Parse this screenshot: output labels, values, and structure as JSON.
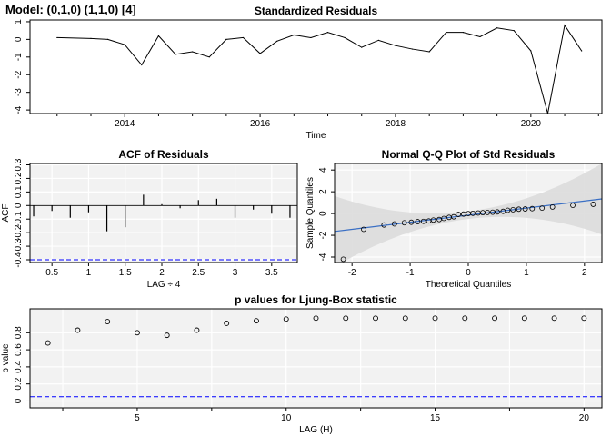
{
  "model_label": "Model: (0,1,0) (1,1,0) [4]",
  "chart_data": [
    {
      "id": "std-residuals",
      "type": "line",
      "title": "Standardized Residuals",
      "xlabel": "Time",
      "ylabel": "",
      "xlim": [
        2012.6,
        2021.05
      ],
      "ylim": [
        -4.2,
        1.1
      ],
      "x_ticks": [
        2014,
        2016,
        2018,
        2020
      ],
      "x_minor_ticks": [
        2013,
        2013.5,
        2014.5,
        2015,
        2015.5,
        2016.5,
        2017,
        2017.5,
        2018.5,
        2019,
        2019.5,
        2020.5,
        2021
      ],
      "y_ticks": [
        -4,
        -3,
        -2,
        -1,
        0,
        1
      ],
      "grid": false,
      "color": "#000000",
      "x": [
        2013.0,
        2013.5,
        2013.75,
        2014.0,
        2014.25,
        2014.5,
        2014.75,
        2015.0,
        2015.25,
        2015.5,
        2015.75,
        2016.0,
        2016.25,
        2016.5,
        2016.75,
        2017.0,
        2017.25,
        2017.5,
        2017.75,
        2018.0,
        2018.25,
        2018.5,
        2018.75,
        2019.0,
        2019.25,
        2019.5,
        2019.75,
        2020.0,
        2020.25,
        2020.5,
        2020.75
      ],
      "values": [
        0.1,
        0.05,
        0.0,
        -0.3,
        -1.45,
        0.2,
        -0.85,
        -0.7,
        -1.0,
        0.0,
        0.1,
        -0.8,
        -0.1,
        0.25,
        0.1,
        0.4,
        0.1,
        -0.45,
        -0.05,
        -0.35,
        -0.55,
        -0.7,
        0.4,
        0.4,
        0.15,
        0.65,
        0.5,
        -0.65,
        -4.2,
        0.8,
        -0.65
      ]
    },
    {
      "id": "acf",
      "type": "bar",
      "title": "ACF of Residuals",
      "xlabel": "LAG ÷ 4",
      "ylabel": "ACF",
      "xlim": [
        0.2,
        3.85
      ],
      "ylim": [
        -0.42,
        0.31
      ],
      "x_ticks": [
        0.5,
        1.0,
        1.5,
        2.0,
        2.5,
        3.0,
        3.5
      ],
      "y_ticks": [
        -0.4,
        -0.3,
        -0.2,
        -0.1,
        0.0,
        0.1,
        0.2,
        0.3
      ],
      "grid": true,
      "lags": [
        0.25,
        0.5,
        0.75,
        1.0,
        1.25,
        1.5,
        1.75,
        2.0,
        2.25,
        2.5,
        2.75,
        3.0,
        3.25,
        3.5,
        3.75
      ],
      "values": [
        -0.08,
        -0.04,
        -0.09,
        -0.05,
        -0.19,
        -0.16,
        0.08,
        0.01,
        -0.02,
        0.04,
        0.05,
        -0.09,
        -0.03,
        -0.06,
        -0.09
      ],
      "conf_limits": [
        -0.4
      ],
      "conf_color": "#0000ff"
    },
    {
      "id": "qq",
      "type": "scatter",
      "title": "Normal Q-Q Plot of Std Residuals",
      "xlabel": "Theoretical Quantiles",
      "ylabel": "Sample Quantiles",
      "xlim": [
        -2.3,
        2.3
      ],
      "ylim": [
        -4.5,
        4.6
      ],
      "x_ticks": [
        -2,
        -1,
        0,
        1,
        2
      ],
      "y_ticks": [
        -4,
        -2,
        0,
        2,
        4
      ],
      "grid": true,
      "theoretical": [
        -2.15,
        -1.8,
        -1.45,
        -1.27,
        -1.1,
        -0.98,
        -0.87,
        -0.77,
        -0.68,
        -0.6,
        -0.5,
        -0.42,
        -0.33,
        -0.25,
        -0.17,
        -0.08,
        0.0,
        0.08,
        0.17,
        0.25,
        0.33,
        0.42,
        0.5,
        0.6,
        0.68,
        0.77,
        0.87,
        0.98,
        1.1,
        1.27,
        1.45,
        1.8,
        2.15
      ],
      "sample": [
        -4.2,
        -1.45,
        -1.05,
        -0.95,
        -0.85,
        -0.8,
        -0.75,
        -0.72,
        -0.68,
        -0.6,
        -0.55,
        -0.45,
        -0.35,
        -0.3,
        -0.08,
        -0.05,
        0.0,
        0.02,
        0.05,
        0.08,
        0.1,
        0.12,
        0.15,
        0.2,
        0.3,
        0.35,
        0.4,
        0.42,
        0.45,
        0.5,
        0.6,
        0.75,
        0.85
      ],
      "ref_line": {
        "intercept": -0.15,
        "slope": 0.65,
        "color": "#3a6fc4"
      },
      "band": {
        "center_halfwidth": 0.35,
        "tail_growth": 0.55,
        "color": "#dcdcdc"
      }
    },
    {
      "id": "ljung-box",
      "type": "scatter",
      "title": "p values for Ljung-Box statistic",
      "xlabel": "LAG (H)",
      "ylabel": "p value",
      "xlim": [
        1.4,
        20.6
      ],
      "ylim": [
        -0.08,
        1.08
      ],
      "x_ticks": [
        5,
        10,
        15,
        20
      ],
      "x_minor_ticks": [
        2.5,
        7.5,
        12.5,
        17.5
      ],
      "y_ticks": [
        0.0,
        0.2,
        0.4,
        0.6,
        0.8
      ],
      "grid": true,
      "x": [
        2,
        3,
        4,
        5,
        6,
        7,
        8,
        9,
        10,
        11,
        12,
        13,
        14,
        15,
        16,
        17,
        18,
        19,
        20
      ],
      "values": [
        0.68,
        0.83,
        0.93,
        0.8,
        0.77,
        0.83,
        0.91,
        0.94,
        0.96,
        0.97,
        0.97,
        0.97,
        0.97,
        0.97,
        0.97,
        0.97,
        0.97,
        0.97,
        0.97
      ],
      "ref_line": 0.05,
      "ref_color": "#0000ff"
    }
  ]
}
